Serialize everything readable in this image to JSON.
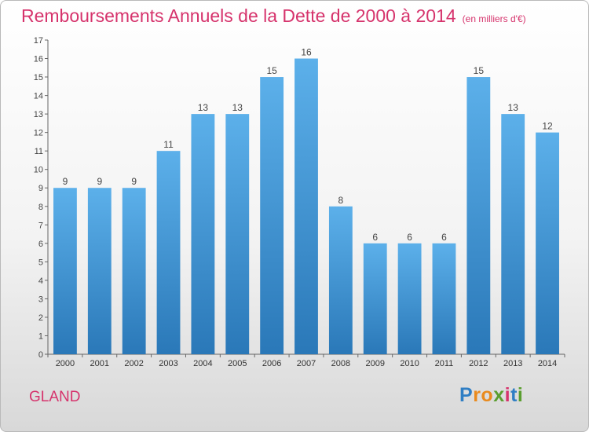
{
  "chart_data": {
    "type": "bar",
    "title": "Remboursements Annuels de la Dette de 2000 à 2014",
    "subtitle": "(en milliers d'€)",
    "categories": [
      "2000",
      "2001",
      "2002",
      "2003",
      "2004",
      "2005",
      "2006",
      "2007",
      "2008",
      "2009",
      "2010",
      "2011",
      "2012",
      "2013",
      "2014"
    ],
    "values": [
      9,
      9,
      9,
      11,
      13,
      13,
      15,
      16,
      8,
      6,
      6,
      6,
      15,
      13,
      12
    ],
    "ylim": [
      0,
      17
    ],
    "yticks": [
      0,
      1,
      2,
      3,
      4,
      5,
      6,
      7,
      8,
      9,
      10,
      11,
      12,
      13,
      14,
      15,
      16,
      17
    ],
    "xlabel": "",
    "ylabel": "",
    "grid": false,
    "bar_color_top": "#5cb0ea",
    "bar_color_bottom": "#2a78b8",
    "title_color": "#d6336c"
  },
  "footer": {
    "city": "GLAND",
    "logo_letters": [
      "P",
      "r",
      "o",
      "x",
      "i",
      "t",
      "i"
    ],
    "logo_colors": [
      "#2f7ec4",
      "#e98a1d",
      "#e98a1d",
      "#5a9e2f",
      "#d6336c",
      "#2f7ec4",
      "#5a9e2f"
    ]
  }
}
